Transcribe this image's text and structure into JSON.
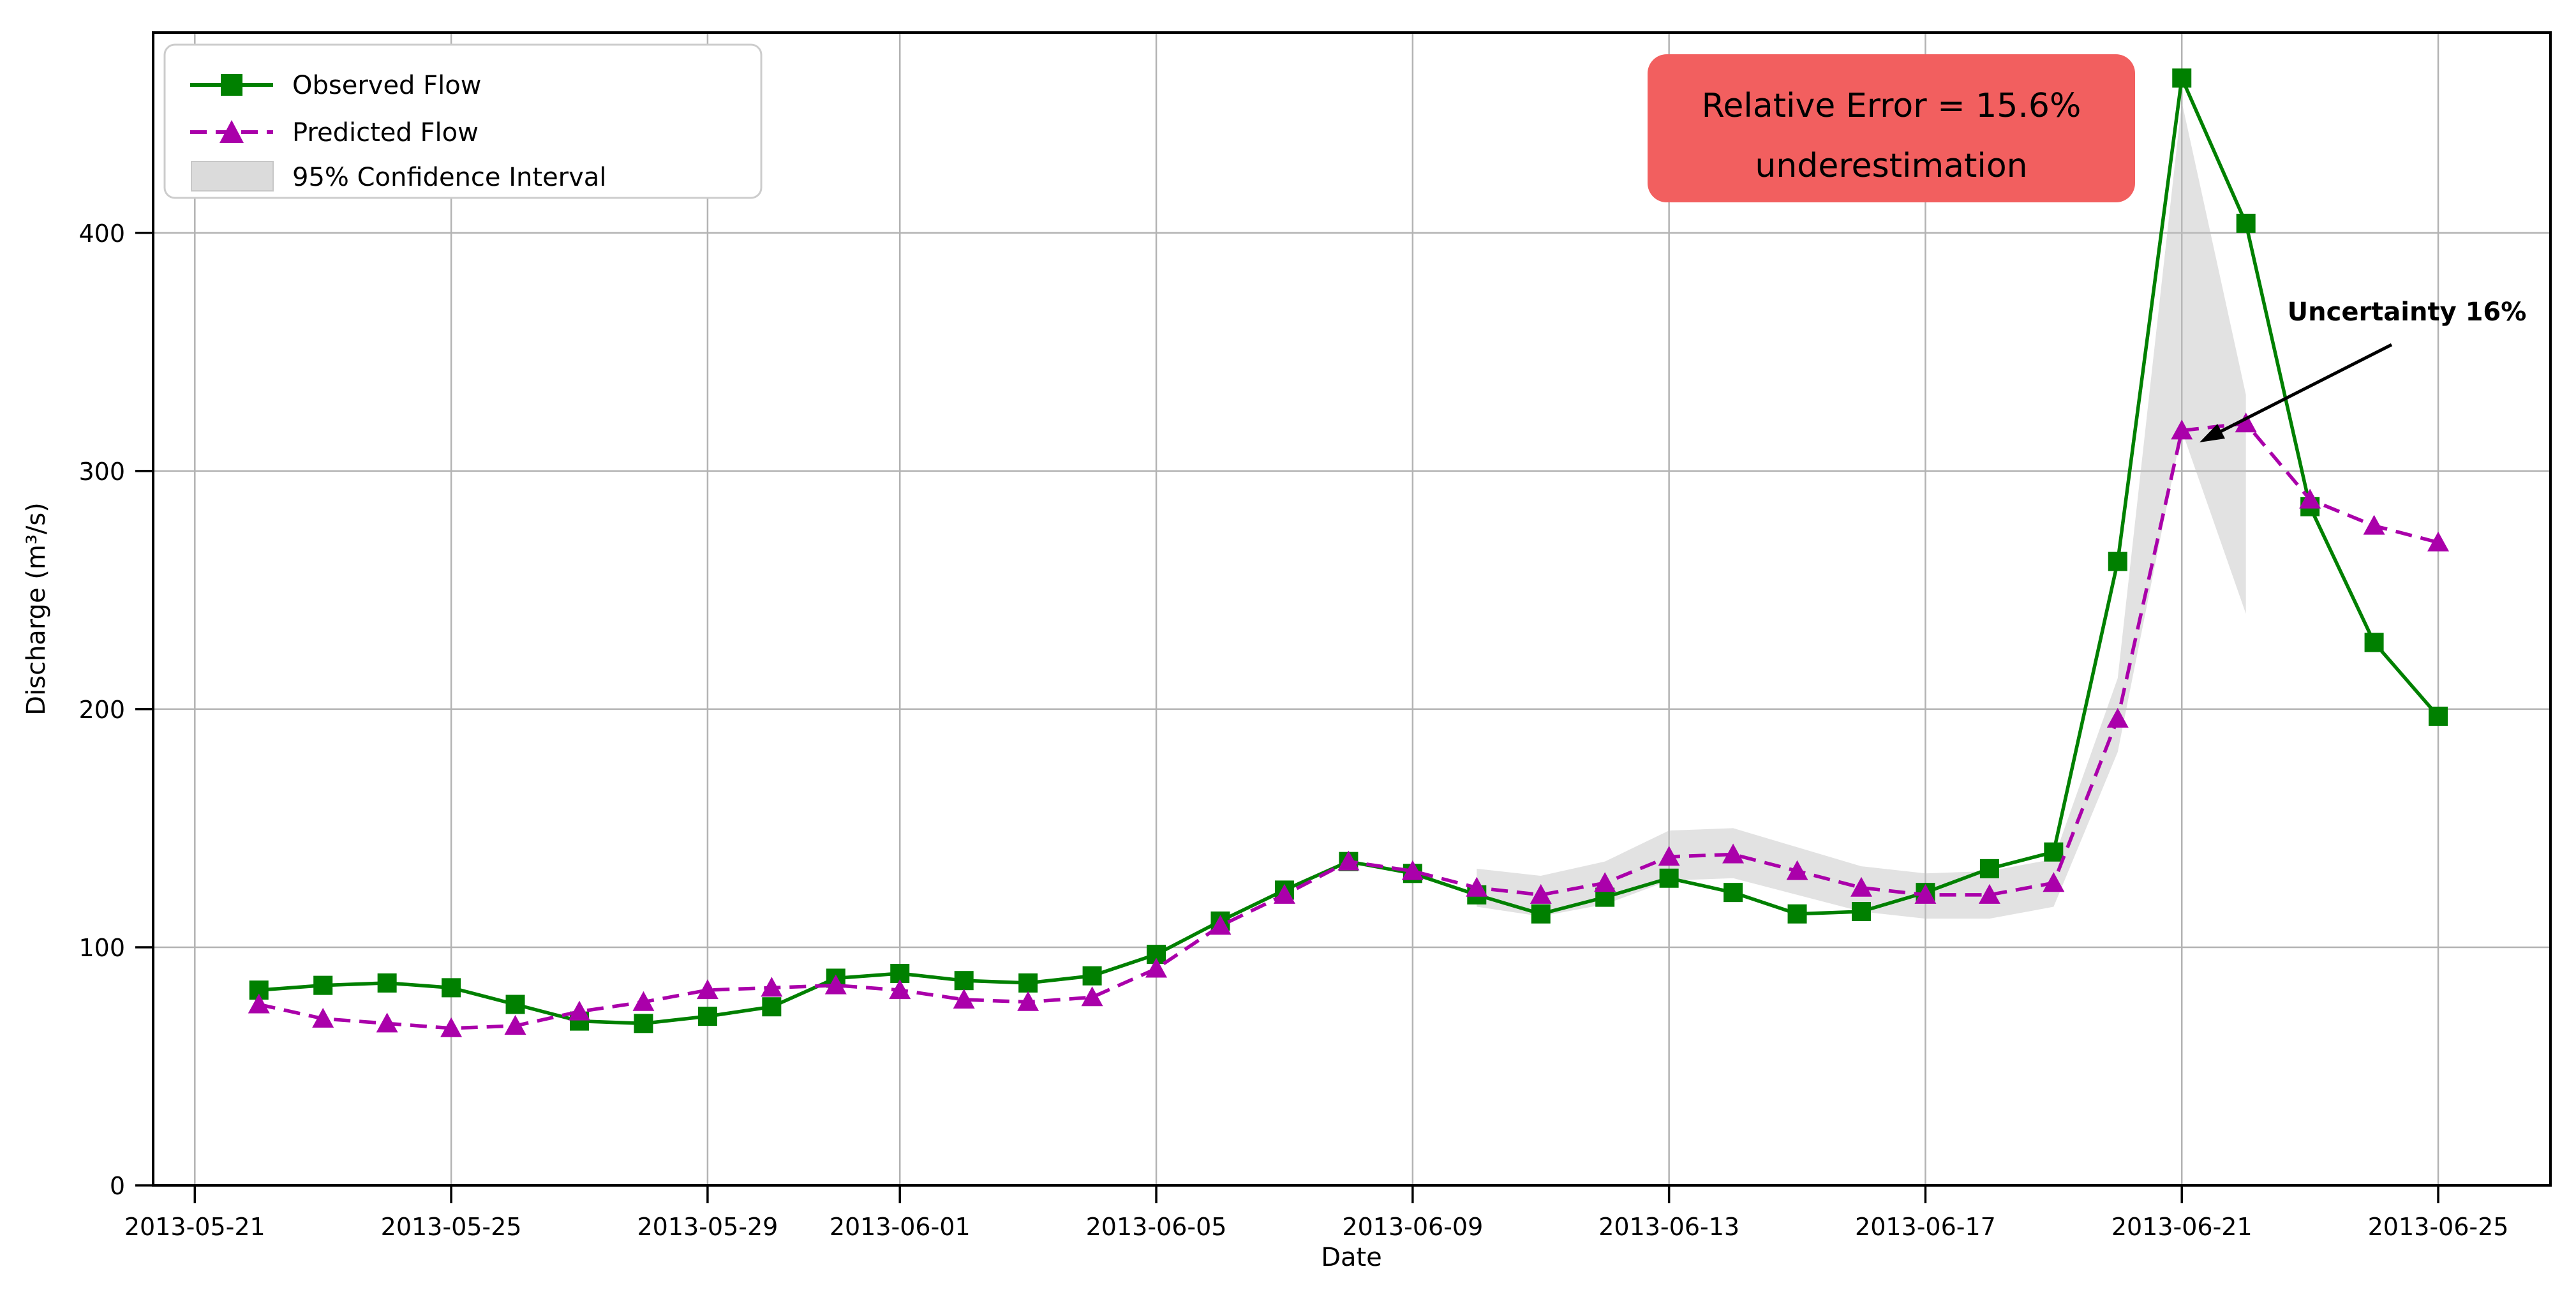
{
  "figure": {
    "background": "#ffffff",
    "axis": {
      "xlabel": "Date",
      "ylabel": "Discharge (m³/s)",
      "spine_color": "#000000",
      "grid_color": "#b3b3b3"
    },
    "legend": {
      "items": [
        {
          "label": "Observed Flow",
          "color": "#008000",
          "style": "solid-square"
        },
        {
          "label": "Predicted Flow",
          "color": "#aa00aa",
          "style": "dashed-triangle"
        },
        {
          "label": "95% Confidence Interval",
          "color": "#cfcfcf",
          "style": "patch"
        }
      ]
    },
    "annotations": {
      "relative_error": {
        "line1": "Relative Error = 15.6%",
        "line2": "underestimation",
        "box_color": "#f25f5f",
        "text_color": "#140000"
      },
      "uncertainty": {
        "text": "Uncertainty 16%",
        "arrow_color": "#000000"
      }
    }
  },
  "chart_data": {
    "type": "line",
    "title": "",
    "xlabel": "Date",
    "ylabel": "Discharge (m³/s)",
    "ylim": [
      0,
      484
    ],
    "grid": true,
    "legend_position": "upper left",
    "x": [
      "2013-05-22",
      "2013-05-23",
      "2013-05-24",
      "2013-05-25",
      "2013-05-26",
      "2013-05-27",
      "2013-05-28",
      "2013-05-29",
      "2013-05-30",
      "2013-05-31",
      "2013-06-01",
      "2013-06-02",
      "2013-06-03",
      "2013-06-04",
      "2013-06-05",
      "2013-06-06",
      "2013-06-07",
      "2013-06-08",
      "2013-06-09",
      "2013-06-10",
      "2013-06-11",
      "2013-06-12",
      "2013-06-13",
      "2013-06-14",
      "2013-06-15",
      "2013-06-16",
      "2013-06-17",
      "2013-06-18",
      "2013-06-19",
      "2013-06-20",
      "2013-06-21",
      "2013-06-22",
      "2013-06-23",
      "2013-06-24",
      "2013-06-25"
    ],
    "series": [
      {
        "name": "Observed Flow",
        "color": "#008000",
        "line_style": "solid",
        "marker": "square",
        "values": [
          82,
          84,
          85,
          83,
          76,
          69,
          68,
          71,
          75,
          87,
          89,
          86,
          85,
          88,
          97,
          111,
          124,
          136,
          131,
          122,
          114,
          121,
          129,
          123,
          114,
          115,
          123,
          133,
          140,
          262,
          465,
          404,
          285,
          228,
          197
        ]
      },
      {
        "name": "Predicted Flow",
        "color": "#aa00aa",
        "line_style": "dashed",
        "marker": "triangle",
        "values": [
          76,
          70,
          68,
          66,
          67,
          73,
          77,
          82,
          83,
          84,
          82,
          78,
          77,
          79,
          91,
          109,
          122,
          136,
          132,
          125,
          122,
          127,
          138,
          139,
          132,
          125,
          122,
          122,
          127,
          196,
          317,
          320,
          288,
          277,
          270
        ]
      }
    ],
    "confidence_interval": {
      "name": "95% Confidence Interval",
      "fill_color": "#bfbfbf",
      "opacity": 0.45,
      "start_date": "2013-06-10",
      "lower": [
        117,
        113,
        118,
        128,
        129,
        122,
        115,
        112,
        112,
        117,
        182,
        317,
        240
      ],
      "upper": [
        133,
        130,
        136,
        149,
        150,
        142,
        134,
        131,
        132,
        137,
        213,
        455,
        332
      ]
    },
    "xticks": [
      "2013-05-21",
      "2013-05-25",
      "2013-05-29",
      "2013-06-01",
      "2013-06-05",
      "2013-06-09",
      "2013-06-13",
      "2013-06-17",
      "2013-06-21",
      "2013-06-25"
    ],
    "yticks": [
      0,
      100,
      200,
      300,
      400
    ]
  }
}
